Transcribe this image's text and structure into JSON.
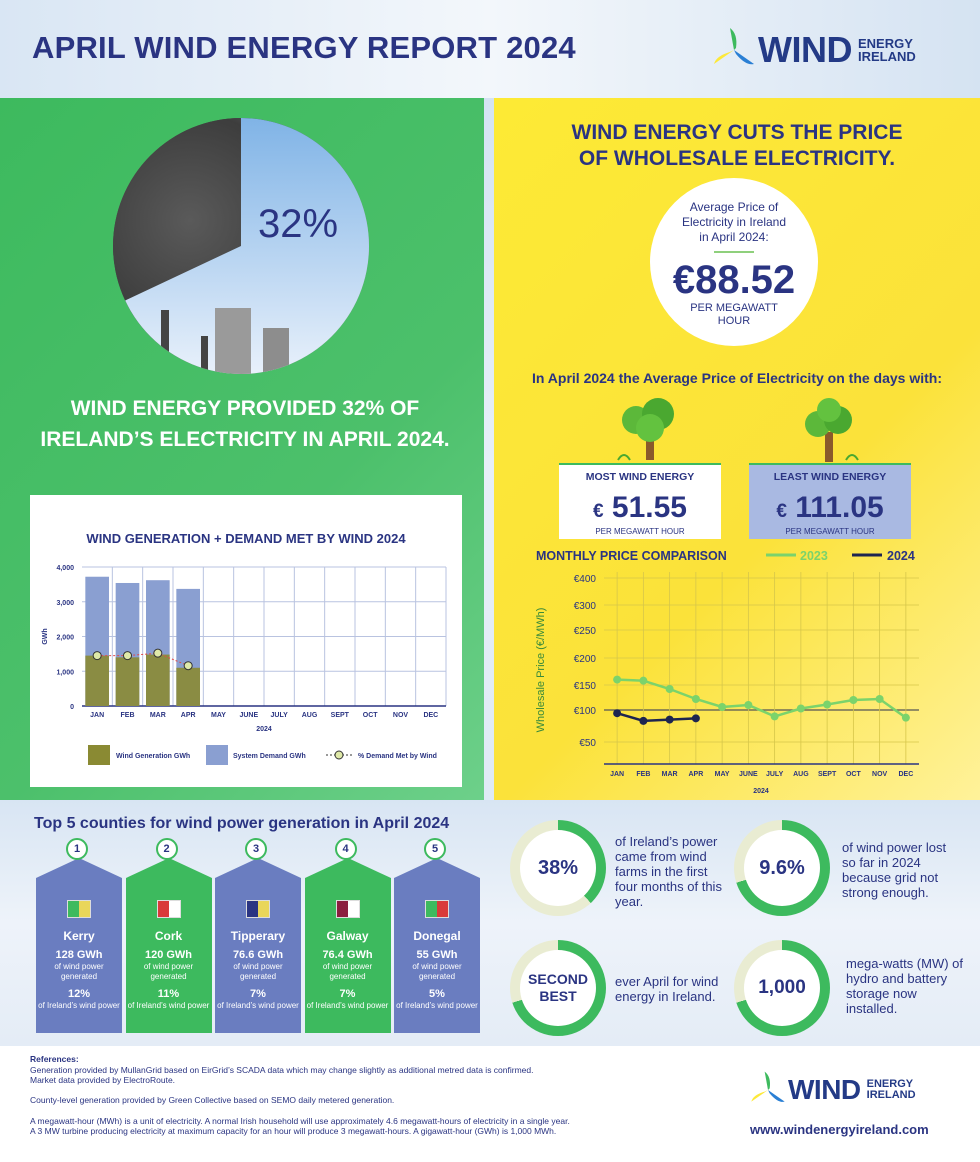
{
  "header": {
    "title": "APRIL WIND ENERGY REPORT 2024"
  },
  "logo": {
    "word": "WIND",
    "sub1": "ENERGY",
    "sub2": "IRELAND"
  },
  "green_panel": {
    "pie_percent": "32%",
    "pie_value": 32,
    "text": "WIND ENERGY PROVIDED 32% OF IRELAND’S ELECTRICITY IN APRIL 2024."
  },
  "yellow_panel": {
    "title_line1": "WIND ENERGY CUTS THE PRICE",
    "title_line2": "OF WHOLESALE ELECTRICITY.",
    "avg_label_1": "Average Price of",
    "avg_label_2": "Electricity in Ireland",
    "avg_label_3": "in April 2024:",
    "avg_value": "€88.52",
    "avg_unit_1": "PER MEGAWATT",
    "avg_unit_2": "HOUR",
    "days_text": "In April 2024 the Average Price of Electricity on the days with:",
    "most": {
      "label": "MOST WIND ENERGY",
      "currency": "€",
      "value": "51.55",
      "unit": "PER MEGAWATT HOUR"
    },
    "least": {
      "label": "LEAST WIND ENERGY",
      "currency": "€",
      "value": "111.05",
      "unit": "PER MEGAWATT HOUR"
    }
  },
  "colors": {
    "green": "#3dba5e",
    "yellow": "#fde93a",
    "navy": "#2a3482",
    "bar_demand": "#8a9fd1",
    "bar_wind": "#8a8a33",
    "line_2023": "#7bd36b",
    "line_2024": "#1e2550",
    "county_blue": "#6a7dc0",
    "county_green": "#3dba5e"
  },
  "chart_data": [
    {
      "type": "bar",
      "title": "WIND GENERATION + DEMAND MET BY WIND 2024",
      "xlabel": "2024",
      "ylabel": "GWh",
      "categories": [
        "JAN",
        "FEB",
        "MAR",
        "APR",
        "MAY",
        "JUNE",
        "JULY",
        "AUG",
        "SEPT",
        "OCT",
        "NOV",
        "DEC"
      ],
      "ylim": [
        0,
        4000
      ],
      "yticks": [
        "0",
        "1,000",
        "2,000",
        "3,000",
        "4,000"
      ],
      "series": [
        {
          "name": "Wind Generation GWh",
          "values": [
            1450,
            1400,
            1480,
            1100,
            null,
            null,
            null,
            null,
            null,
            null,
            null,
            null
          ]
        },
        {
          "name": "System Demand GWh",
          "values": [
            3720,
            3540,
            3620,
            3370,
            null,
            null,
            null,
            null,
            null,
            null,
            null,
            null
          ]
        },
        {
          "name": "% Demand Met by Wind",
          "values": [
            1450,
            1450,
            1520,
            1160,
            null,
            null,
            null,
            null,
            null,
            null,
            null,
            null
          ]
        }
      ],
      "grid": true,
      "legend": "bottom"
    },
    {
      "type": "line",
      "title": "MONTHLY PRICE COMPARISON",
      "xlabel": "2024",
      "ylabel": "Wholesale Price (€/MWh)",
      "categories": [
        "JAN",
        "FEB",
        "MAR",
        "APR",
        "MAY",
        "JUNE",
        "JULY",
        "AUG",
        "SEPT",
        "OCT",
        "NOV",
        "DEC"
      ],
      "yticks": [
        "€50",
        "€100",
        "€150",
        "€200",
        "€250",
        "€300",
        "€400"
      ],
      "series": [
        {
          "name": "2023",
          "values": [
            160,
            158,
            142,
            122,
            106,
            110,
            90,
            103,
            111,
            120,
            122,
            88
          ]
        },
        {
          "name": "2024",
          "values": [
            95,
            83,
            85,
            87,
            null,
            null,
            null,
            null,
            null,
            null,
            null,
            null
          ]
        }
      ],
      "grid": true,
      "legend": "top-right"
    }
  ],
  "counties": {
    "title": "Top 5 counties for wind power generation in April 2024",
    "items": [
      {
        "rank": "1",
        "name": "Kerry",
        "gwh": "128 GWh",
        "gwh_label": "of wind power generated",
        "pct": "12%",
        "pct_label": "of Ireland’s wind power",
        "color": "#6a7dc0"
      },
      {
        "rank": "2",
        "name": "Cork",
        "gwh": "120 GWh",
        "gwh_label": "of wind power generated",
        "pct": "11%",
        "pct_label": "of Ireland’s wind power",
        "color": "#3dba5e"
      },
      {
        "rank": "3",
        "name": "Tipperary",
        "gwh": "76.6 GWh",
        "gwh_label": "of wind power generated",
        "pct": "7%",
        "pct_label": "of Ireland’s wind power",
        "color": "#6a7dc0"
      },
      {
        "rank": "4",
        "name": "Galway",
        "gwh": "76.4 GWh",
        "gwh_label": "of wind power generated",
        "pct": "7%",
        "pct_label": "of Ireland’s wind power",
        "color": "#3dba5e"
      },
      {
        "rank": "5",
        "name": "Donegal",
        "gwh": "55 GWh",
        "gwh_label": "of wind power generated",
        "pct": "5%",
        "pct_label": "of Ireland’s wind power",
        "color": "#6a7dc0"
      }
    ]
  },
  "stats": {
    "s1": {
      "value": "38%",
      "text": "of Ireland’s power came from wind farms in the first four months of this year."
    },
    "s2": {
      "value": "9.6%",
      "text": "of wind power lost so far in 2024 because grid not strong enough."
    },
    "s3": {
      "value": "SECOND BEST",
      "text": "ever April for wind energy in Ireland."
    },
    "s4": {
      "value": "1,000",
      "text": "mega-watts (MW) of hydro and battery storage now installed."
    }
  },
  "footer": {
    "ref_title": "References:",
    "ref1": "Generation provided by MullanGrid based on EirGrid’s SCADA data which may change slightly as additional metred data is confirmed. Market data provided by ElectroRoute.",
    "ref2": "County-level generation provided by Green Collective based on SEMO daily metered generation.",
    "ref3": "A megawatt-hour (MWh) is a unit of electricity. A normal Irish household will use approximately 4.6 megawatt-hours of electricity in a single year. A 3 MW turbine producing electricity at maximum capacity for an hour will produce 3 megawatt-hours. A gigawatt-hour (GWh) is 1,000 MWh.",
    "url": "www.windenergyireland.com"
  }
}
